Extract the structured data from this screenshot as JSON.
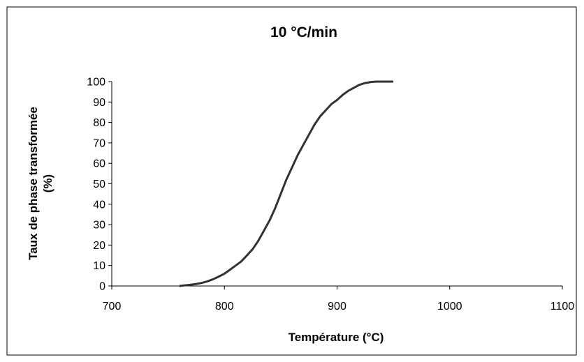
{
  "chart_data": {
    "type": "line",
    "title": "10 °C/min",
    "xlabel": "Température (°C)",
    "ylabel_line1": "Taux de phase transformée",
    "ylabel_line2": "(%)",
    "xlim": [
      700,
      1100
    ],
    "ylim": [
      0,
      100
    ],
    "x_ticks": [
      700,
      800,
      900,
      1000,
      1100
    ],
    "y_ticks": [
      0,
      10,
      20,
      30,
      40,
      50,
      60,
      70,
      80,
      90,
      100
    ],
    "grid": false,
    "legend": "none",
    "line_color": "#333333",
    "series": [
      {
        "x": [
          760,
          765,
          770,
          775,
          780,
          785,
          790,
          795,
          800,
          805,
          810,
          815,
          820,
          825,
          830,
          835,
          840,
          845,
          850,
          855,
          860,
          865,
          870,
          875,
          880,
          885,
          890,
          895,
          900,
          905,
          910,
          915,
          920,
          925,
          930,
          935,
          940,
          945,
          950
        ],
        "y": [
          0,
          0.3,
          0.6,
          1,
          1.5,
          2.3,
          3.3,
          4.6,
          6,
          8,
          10,
          12,
          15,
          18,
          22,
          27,
          32,
          38,
          45,
          52,
          58,
          64,
          69,
          74,
          79,
          83,
          86,
          89,
          91,
          93.5,
          95.5,
          97,
          98.5,
          99.3,
          99.8,
          100,
          100,
          100,
          100
        ]
      }
    ]
  }
}
